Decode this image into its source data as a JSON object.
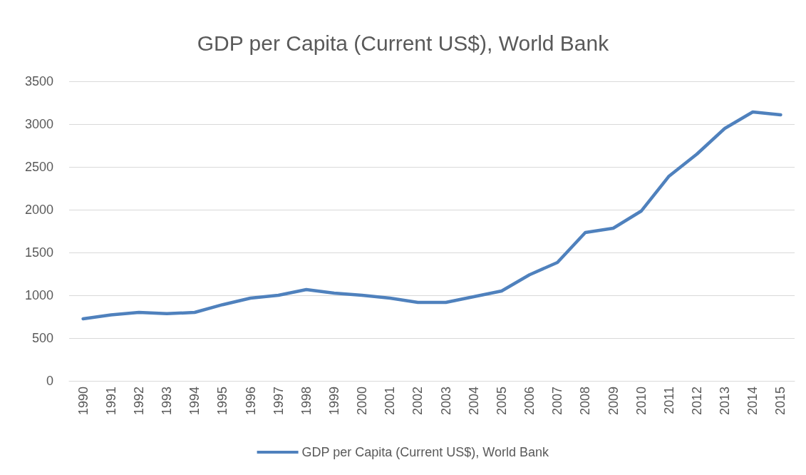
{
  "chart_data": {
    "type": "line",
    "title": "GDP per Capita (Current US$), World Bank",
    "categories": [
      "1990",
      "1991",
      "1992",
      "1993",
      "1994",
      "1995",
      "1996",
      "1997",
      "1998",
      "1999",
      "2000",
      "2001",
      "2002",
      "2003",
      "2004",
      "2005",
      "2006",
      "2007",
      "2008",
      "2009",
      "2010",
      "2011",
      "2012",
      "2013",
      "2014",
      "2015"
    ],
    "series": [
      {
        "name": "GDP per Capita (Current US$), World Bank",
        "color": "#4f81bd",
        "values": [
          725,
          770,
          800,
          785,
          800,
          890,
          967,
          1000,
          1067,
          1025,
          1000,
          967,
          917,
          917,
          983,
          1050,
          1240,
          1383,
          1733,
          1783,
          1983,
          2392,
          2650,
          2950,
          3142,
          3108
        ]
      }
    ],
    "ylim": [
      0,
      3500
    ],
    "yticks": [
      0,
      500,
      1000,
      1500,
      2000,
      2500,
      3000,
      3500
    ],
    "grid": "y",
    "legend": "bottom",
    "marker": "none",
    "line_style": "solid"
  }
}
